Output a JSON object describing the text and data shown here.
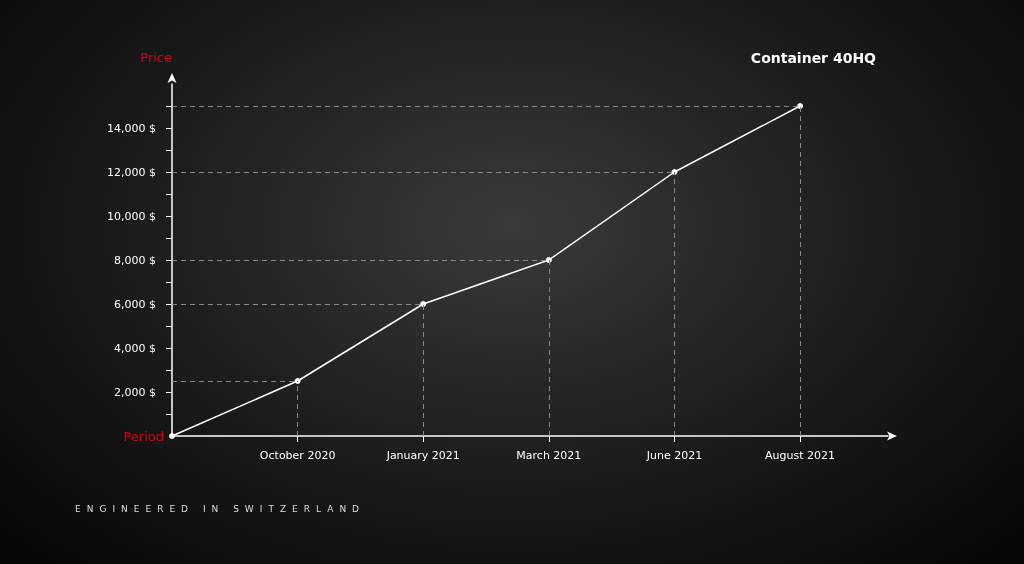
{
  "chart_data": {
    "type": "line",
    "title": "Container 40HQ",
    "xlabel": "Period",
    "ylabel": "Price",
    "categories": [
      null,
      "October 2020",
      "January 2021",
      "March 2021",
      "June 2021",
      "August 2021"
    ],
    "series": [
      {
        "color": "#ffffff",
        "values": [
          0,
          2500,
          6000,
          8000,
          12000,
          15000
        ]
      }
    ],
    "ylim": [
      0,
      16000
    ],
    "yticks": [
      {
        "value": 1000,
        "label": null
      },
      {
        "value": 2000,
        "label": "2,000 $"
      },
      {
        "value": 3000,
        "label": null
      },
      {
        "value": 4000,
        "label": "4,000 $"
      },
      {
        "value": 5000,
        "label": null
      },
      {
        "value": 6000,
        "label": "6,000 $"
      },
      {
        "value": 7000,
        "label": null
      },
      {
        "value": 8000,
        "label": "8,000 $"
      },
      {
        "value": 9000,
        "label": null
      },
      {
        "value": 10000,
        "label": "10,000 $"
      },
      {
        "value": 11000,
        "label": null
      },
      {
        "value": 12000,
        "label": "12,000 $"
      },
      {
        "value": 13000,
        "label": null
      },
      {
        "value": 14000,
        "label": "14,000 $"
      },
      {
        "value": 15000,
        "label": null
      }
    ],
    "ref_lines": [
      {
        "axis": "y",
        "value": 2500,
        "color": "#888888",
        "line_style": "dashed"
      },
      {
        "axis": "y",
        "value": 6000,
        "color": "#888888",
        "line_style": "dashed"
      },
      {
        "axis": "y",
        "value": 8000,
        "color": "#888888",
        "line_style": "dashed"
      },
      {
        "axis": "y",
        "value": 12000,
        "color": "#888888",
        "line_style": "dashed"
      },
      {
        "axis": "y",
        "value": 15000,
        "color": "#888888",
        "line_style": "dashed"
      },
      {
        "axis": "x",
        "value": "October 2020",
        "color": "#888888",
        "line_style": "dashed"
      },
      {
        "axis": "x",
        "value": "January 2021",
        "color": "#888888",
        "line_style": "dashed"
      },
      {
        "axis": "x",
        "value": "March 2021",
        "color": "#888888",
        "line_style": "dashed"
      },
      {
        "axis": "x",
        "value": "June 2021",
        "color": "#888888",
        "line_style": "dashed"
      },
      {
        "axis": "x",
        "value": "August 2021",
        "color": "#888888",
        "line_style": "dashed"
      }
    ],
    "grid": false,
    "marker": "circle",
    "line_style": "solid",
    "annotations": [
      "ENGINEERED IN SWITZERLAND"
    ]
  }
}
